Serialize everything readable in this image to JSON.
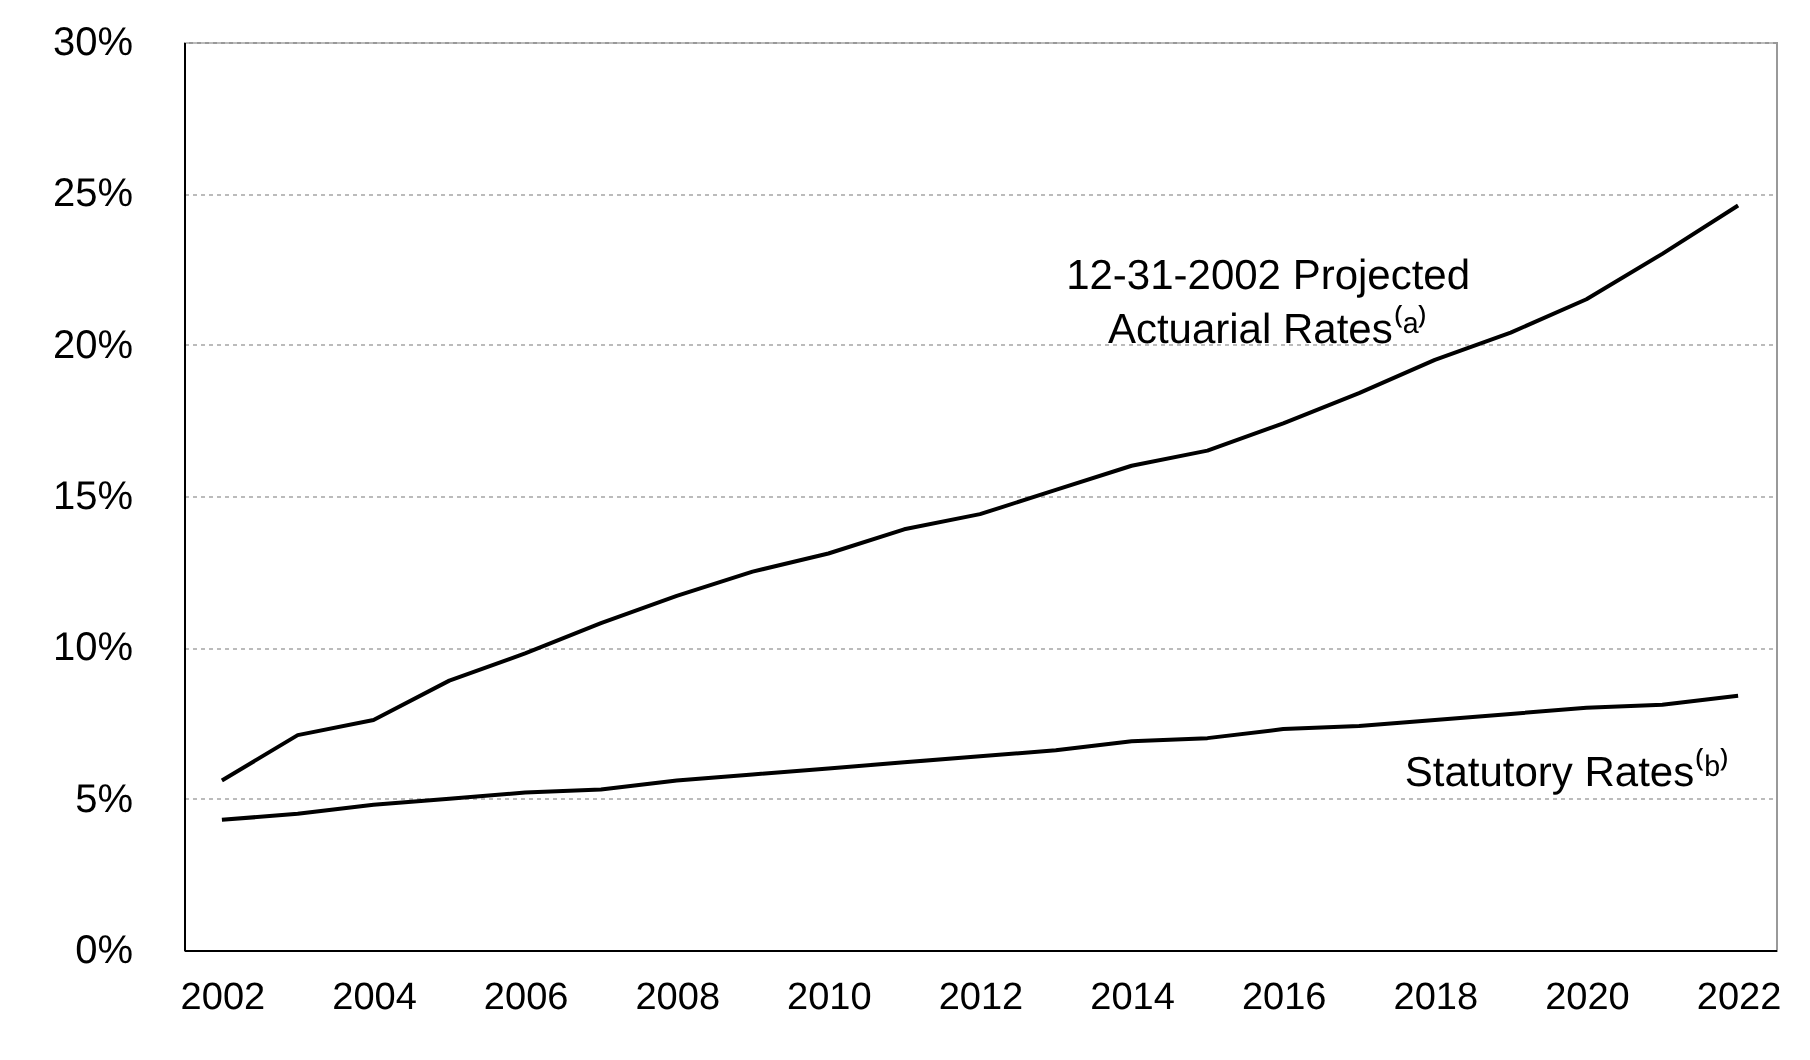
{
  "chart_data": {
    "type": "line",
    "x": [
      2002,
      2003,
      2004,
      2005,
      2006,
      2007,
      2008,
      2009,
      2010,
      2011,
      2012,
      2013,
      2014,
      2015,
      2016,
      2017,
      2018,
      2019,
      2020,
      2021,
      2022
    ],
    "series": [
      {
        "name": "12-31-2002 Projected Actuarial Rates⁽ᵃ⁾",
        "color": "#000000",
        "values": [
          5.6,
          7.1,
          7.6,
          8.9,
          9.8,
          10.8,
          11.7,
          12.5,
          13.1,
          13.9,
          14.4,
          15.2,
          16.0,
          16.5,
          17.4,
          18.4,
          19.5,
          20.4,
          21.5,
          23.0,
          24.6
        ]
      },
      {
        "name": "Statutory Rates⁽ᵇ⁾",
        "color": "#000000",
        "values": [
          4.3,
          4.5,
          4.8,
          5.0,
          5.2,
          5.3,
          5.6,
          5.8,
          6.0,
          6.2,
          6.4,
          6.6,
          6.9,
          7.0,
          7.3,
          7.4,
          7.6,
          7.8,
          8.0,
          8.1,
          8.4
        ]
      }
    ],
    "xlim": [
      2001.5,
      2022.5
    ],
    "xticks": [
      2002,
      2004,
      2006,
      2008,
      2010,
      2012,
      2014,
      2016,
      2018,
      2020,
      2022
    ],
    "ylim": [
      0,
      30
    ],
    "yticks": [
      {
        "value": 0,
        "label": "0%"
      },
      {
        "value": 5,
        "label": "5%"
      },
      {
        "value": 10,
        "label": "10%"
      },
      {
        "value": 15,
        "label": "15%"
      },
      {
        "value": 20,
        "label": "20%"
      },
      {
        "value": 25,
        "label": "25%"
      },
      {
        "value": 30,
        "label": "30%"
      }
    ],
    "grid": "y"
  }
}
